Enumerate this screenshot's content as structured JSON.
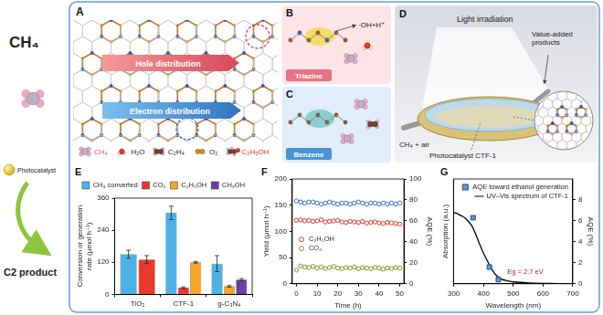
{
  "left": {
    "reactant": "CH₄",
    "catalyst": "Photocatalyst",
    "product": "C2 product"
  },
  "panels": {
    "A": {
      "label": "A",
      "banners": [
        "Hole distribution",
        "Electron distribution"
      ],
      "legend": [
        {
          "text": "CH₄",
          "color": "#d94f8a"
        },
        {
          "text": "H₂O",
          "color": "#222222"
        },
        {
          "text": "C₂H₄",
          "color": "#222222"
        },
        {
          "text": "O₂",
          "color": "#222222"
        },
        {
          "text": "C₂H₅OH",
          "color": "#e0302a"
        }
      ]
    },
    "B": {
      "label": "B",
      "site": "Triazine",
      "species": "·OH+H⁺"
    },
    "C": {
      "label": "C",
      "site": "Benzene"
    },
    "D": {
      "label": "D",
      "light": "Light irradiation",
      "products": "Value-added products",
      "feed": "CH₄ + air",
      "catalyst": "Photocatalyst CTF-1"
    }
  },
  "chart_data": [
    {
      "label": "E",
      "type": "bar",
      "categories": [
        "TiO₂",
        "CTF-1",
        "g-C₃N₄"
      ],
      "y_label": "Conversion or generation rate (μmol h⁻¹)",
      "series": [
        {
          "name": "CH₄ converted",
          "color": "#4db3e6",
          "values": [
            150,
            305,
            115
          ],
          "errors": [
            15,
            25,
            30
          ]
        },
        {
          "name": "CO₂",
          "color": "#e8392b",
          "values": [
            130,
            25,
            null
          ],
          "errors": [
            15,
            3,
            null
          ]
        },
        {
          "name": "C₂H₅OH",
          "color": "#f5a623",
          "values": [
            null,
            120,
            30
          ],
          "errors": [
            null,
            3,
            3
          ]
        },
        {
          "name": "CH₃OH",
          "color": "#6b3fa0",
          "values": [
            null,
            null,
            55
          ],
          "errors": [
            null,
            null,
            4
          ]
        }
      ],
      "ylim": [
        0,
        360
      ],
      "yticks": [
        0,
        120,
        240,
        360
      ],
      "grid": false,
      "legend": "top"
    },
    {
      "label": "F",
      "type": "scatter",
      "x": [
        0,
        2,
        4,
        6,
        8,
        10,
        12,
        14,
        16,
        18,
        20,
        22,
        24,
        26,
        28,
        30,
        32,
        34,
        36,
        38,
        40,
        42,
        44,
        46,
        48,
        50
      ],
      "x_label": "Time (h)",
      "y_label": "Yield (μmol h⁻¹)",
      "y2_label": "AQE (%)",
      "series": [
        {
          "name": "C₂H₅OH",
          "color": "#e0392b",
          "marker": "circle",
          "values": [
            121,
            122,
            120,
            121,
            119,
            120,
            122,
            118,
            119,
            120,
            121,
            118,
            117,
            119,
            118,
            117,
            119,
            116,
            117,
            118,
            116,
            115,
            117,
            116,
            115,
            114
          ]
        },
        {
          "name": "CO₂",
          "color": "#7a9a30",
          "marker": "circle",
          "values": [
            26,
            34,
            32,
            31,
            33,
            30,
            32,
            29,
            31,
            33,
            30,
            29,
            31,
            30,
            32,
            29,
            31,
            30,
            29,
            31,
            30,
            28,
            30,
            29,
            31,
            30
          ]
        },
        {
          "color": "#3a6fc0",
          "marker": "circle",
          "axis": "y2",
          "values": [
            79,
            78,
            77,
            78,
            78,
            77,
            76,
            77,
            78,
            77,
            76,
            77,
            77,
            76,
            77,
            78,
            77,
            76,
            77,
            77,
            76,
            77,
            76,
            77,
            76,
            77
          ]
        }
      ],
      "xlim": [
        -2,
        52
      ],
      "xticks": [
        0,
        10,
        20,
        30,
        40,
        50
      ],
      "ylim": [
        0,
        200
      ],
      "yticks": [
        0,
        50,
        100,
        150,
        200
      ],
      "y2lim": [
        0,
        100
      ],
      "y2ticks": [
        0,
        20,
        40,
        60,
        80,
        100
      ],
      "grid": false,
      "legend": "center left"
    },
    {
      "label": "G",
      "type": "line",
      "x_label": "Wavelength (nm)",
      "y_label": "Absorption (a.u.)",
      "y2_label": "AQE (%)",
      "series": [
        {
          "name": "AQE toward ethanol generation",
          "type": "scatter",
          "marker": "square",
          "axis": "y2",
          "color": "#5b9bd5",
          "x": [
            365,
            420,
            450
          ],
          "values": [
            6.3,
            1.6,
            0.4
          ]
        },
        {
          "name": "UV–Vis spectrum of CTF-1",
          "type": "line",
          "color": "#000000",
          "x": [
            300,
            310,
            320,
            330,
            340,
            350,
            360,
            370,
            380,
            390,
            400,
            410,
            420,
            430,
            440,
            450,
            460,
            480,
            500,
            550,
            600,
            650,
            700
          ],
          "values": [
            0.95,
            0.94,
            0.92,
            0.9,
            0.87,
            0.83,
            0.78,
            0.7,
            0.6,
            0.5,
            0.41,
            0.33,
            0.25,
            0.18,
            0.125,
            0.09,
            0.06,
            0.04,
            0.025,
            0.012,
            0.006,
            0.003,
            0.0
          ]
        }
      ],
      "annotations": [
        "Eg = 2.7 eV"
      ],
      "xlim": [
        300,
        700
      ],
      "xticks": [
        300,
        400,
        500,
        600,
        700
      ],
      "ylim": [
        0,
        1.4
      ],
      "yticks": [],
      "y2lim": [
        0,
        10
      ],
      "y2ticks": [
        0,
        2,
        4,
        6,
        8
      ],
      "grid": false,
      "legend": "top right"
    }
  ]
}
